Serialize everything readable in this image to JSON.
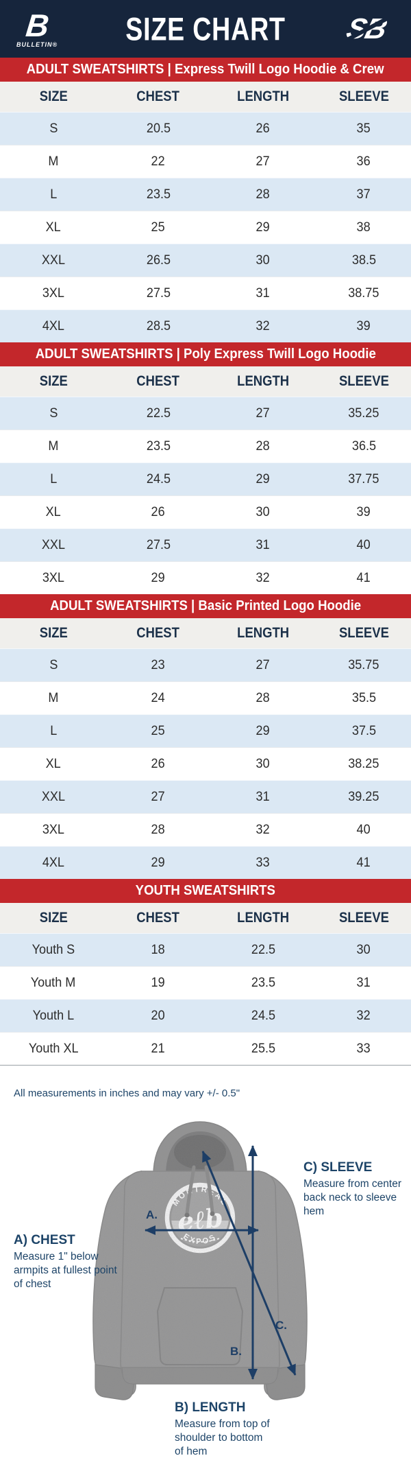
{
  "header": {
    "title": "SIZE CHART",
    "left_logo": {
      "mark": "B",
      "text": "BULLETIN®"
    },
    "right_logo": {
      "text": "SB"
    }
  },
  "tables": [
    {
      "title": "ADULT SWEATSHIRTS | Express Twill Logo Hoodie & Crew",
      "columns": [
        "SIZE",
        "CHEST",
        "LENGTH",
        "SLEEVE"
      ],
      "rows": [
        [
          "S",
          "20.5",
          "26",
          "35"
        ],
        [
          "M",
          "22",
          "27",
          "36"
        ],
        [
          "L",
          "23.5",
          "28",
          "37"
        ],
        [
          "XL",
          "25",
          "29",
          "38"
        ],
        [
          "XXL",
          "26.5",
          "30",
          "38.5"
        ],
        [
          "3XL",
          "27.5",
          "31",
          "38.75"
        ],
        [
          "4XL",
          "28.5",
          "32",
          "39"
        ]
      ]
    },
    {
      "title": "ADULT SWEATSHIRTS | Poly Express Twill Logo Hoodie",
      "columns": [
        "SIZE",
        "CHEST",
        "LENGTH",
        "SLEEVE"
      ],
      "rows": [
        [
          "S",
          "22.5",
          "27",
          "35.25"
        ],
        [
          "M",
          "23.5",
          "28",
          "36.5"
        ],
        [
          "L",
          "24.5",
          "29",
          "37.75"
        ],
        [
          "XL",
          "26",
          "30",
          "39"
        ],
        [
          "XXL",
          "27.5",
          "31",
          "40"
        ],
        [
          "3XL",
          "29",
          "32",
          "41"
        ]
      ]
    },
    {
      "title": "ADULT SWEATSHIRTS | Basic Printed Logo Hoodie",
      "columns": [
        "SIZE",
        "CHEST",
        "LENGTH",
        "SLEEVE"
      ],
      "rows": [
        [
          "S",
          "23",
          "27",
          "35.75"
        ],
        [
          "M",
          "24",
          "28",
          "35.5"
        ],
        [
          "L",
          "25",
          "29",
          "37.5"
        ],
        [
          "XL",
          "26",
          "30",
          "38.25"
        ],
        [
          "XXL",
          "27",
          "31",
          "39.25"
        ],
        [
          "3XL",
          "28",
          "32",
          "40"
        ],
        [
          "4XL",
          "29",
          "33",
          "41"
        ]
      ]
    },
    {
      "title": "YOUTH SWEATSHIRTS",
      "columns": [
        "SIZE",
        "CHEST",
        "LENGTH",
        "SLEEVE"
      ],
      "rows": [
        [
          "Youth S",
          "18",
          "22.5",
          "30"
        ],
        [
          "Youth M",
          "19",
          "23.5",
          "31"
        ],
        [
          "Youth L",
          "20",
          "24.5",
          "32"
        ],
        [
          "Youth XL",
          "21",
          "25.5",
          "33"
        ]
      ]
    }
  ],
  "note": "All measurements in inches and may vary +/- 0.5\"",
  "diagram": {
    "annotations": {
      "chest": {
        "label": "A) CHEST",
        "desc": "Measure 1\" below armpits at fullest point of chest"
      },
      "length": {
        "label": "B) LENGTH",
        "desc": "Measure from top of shoulder to bottom of hem"
      },
      "sleeve": {
        "label": "C) SLEEVE",
        "desc": "Measure from center back neck to sleeve hem"
      }
    },
    "markers": {
      "a": "A.",
      "b": "B.",
      "c": "C."
    },
    "logo": {
      "top": "MONTRÉAL",
      "bottom": "EXPOS",
      "center": "eℓb"
    }
  },
  "colors": {
    "navy": "#16253C",
    "red": "#C3272B",
    "row_blue": "#DBE8F4",
    "header_row": "#F0EFEC",
    "header_text": "#1B3049",
    "annotation_text": "#1D4468",
    "arrow": "#1D3E66",
    "hoodie_gray": "#9B9B9B"
  }
}
